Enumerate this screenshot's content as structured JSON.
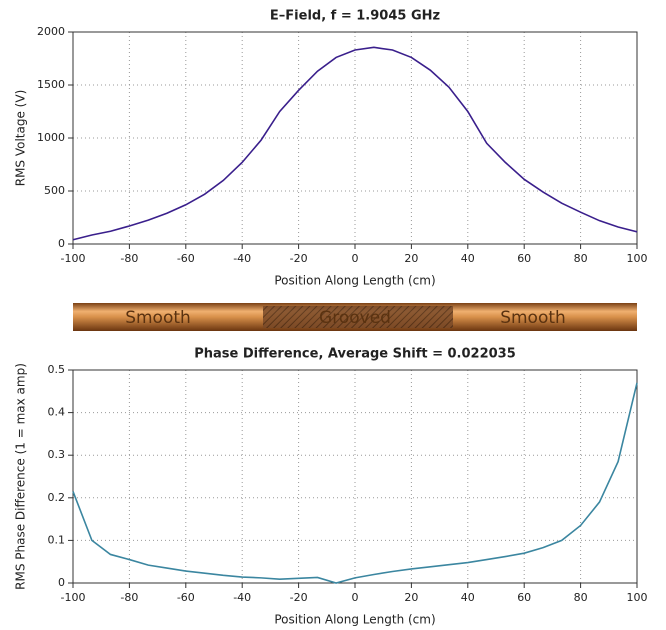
{
  "chart_data": [
    {
      "type": "line",
      "title": "E–Field, f = 1.9045 GHz",
      "xlabel": "Position Along Length (cm)",
      "ylabel": "RMS Voltage (V)",
      "x": [
        -100,
        -93.3,
        -86.7,
        -80,
        -73.3,
        -66.7,
        -60,
        -53.3,
        -46.7,
        -40,
        -33.3,
        -26.7,
        -20,
        -13.3,
        -6.7,
        0,
        6.7,
        13.3,
        20,
        26.7,
        33.3,
        40,
        46.7,
        53.3,
        60,
        66.7,
        73.3,
        80,
        86.7,
        93.3,
        100
      ],
      "values": [
        40,
        85,
        120,
        170,
        225,
        290,
        370,
        470,
        600,
        770,
        980,
        1250,
        1450,
        1630,
        1760,
        1830,
        1855,
        1830,
        1760,
        1640,
        1480,
        1250,
        950,
        770,
        610,
        490,
        385,
        300,
        220,
        160,
        115
      ],
      "color": "#3a1f8c",
      "xlim": [
        -100,
        100
      ],
      "xticks": [
        -100,
        -80,
        -60,
        -40,
        -20,
        0,
        20,
        40,
        60,
        80,
        100
      ],
      "ylim": [
        0,
        2000
      ],
      "yticks": [
        0,
        500,
        1000,
        1500,
        2000
      ],
      "grid": true
    },
    {
      "type": "line",
      "title": "Phase Difference, Average Shift = 0.022035",
      "xlabel": "Position Along Length (cm)",
      "ylabel": "RMS Phase Difference (1 = max amp)",
      "x": [
        -100,
        -93.3,
        -86.7,
        -80,
        -73.3,
        -66.7,
        -60,
        -53.3,
        -46.7,
        -40,
        -33.3,
        -26.7,
        -20,
        -13.3,
        -6.7,
        0,
        6.7,
        13.3,
        20,
        26.7,
        33.3,
        40,
        46.7,
        53.3,
        60,
        66.7,
        73.3,
        80,
        86.7,
        93.3,
        100
      ],
      "values": [
        0.215,
        0.1,
        0.067,
        0.055,
        0.042,
        0.035,
        0.028,
        0.023,
        0.018,
        0.014,
        0.012,
        0.009,
        0.011,
        0.013,
        0.0,
        0.012,
        0.02,
        0.027,
        0.033,
        0.038,
        0.043,
        0.048,
        0.055,
        0.062,
        0.07,
        0.083,
        0.1,
        0.135,
        0.19,
        0.285,
        0.47
      ],
      "color": "#3b86a0",
      "xlim": [
        -100,
        100
      ],
      "xticks": [
        -100,
        -80,
        -60,
        -40,
        -20,
        0,
        20,
        40,
        60,
        80,
        100
      ],
      "ylim": [
        0,
        0.5
      ],
      "yticks": [
        0,
        0.1,
        0.2,
        0.3,
        0.4,
        0.5
      ],
      "grid": true
    }
  ],
  "pipe": {
    "labels": [
      "Smooth",
      "Grooved",
      "Smooth"
    ]
  }
}
